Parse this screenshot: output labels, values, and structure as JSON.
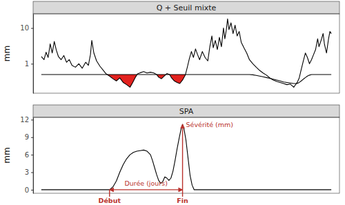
{
  "chart_data": [
    {
      "type": "line",
      "title": "Q + Seuil mixte",
      "y_label": "mm",
      "log": "y",
      "tick_labels": "y",
      "xlim": [
        -12,
        437
      ],
      "ylim": [
        0.15,
        25
      ],
      "yticks": [
        1,
        10
      ],
      "x": [
        0,
        4,
        7,
        10,
        13,
        16,
        19,
        22,
        25,
        29,
        33,
        37,
        41,
        45,
        50,
        55,
        60,
        65,
        69,
        72,
        74,
        77,
        81,
        86,
        91,
        95,
        100,
        105,
        110,
        115,
        120,
        125,
        130,
        134,
        138,
        141,
        145,
        150,
        155,
        160,
        165,
        169,
        172,
        176,
        180,
        184,
        188,
        191,
        195,
        199,
        203,
        207,
        211,
        214,
        217,
        220,
        223,
        226,
        229,
        232,
        236,
        240,
        244,
        247,
        250,
        252,
        255,
        258,
        261,
        264,
        267,
        269,
        271,
        273,
        275,
        278,
        281,
        284,
        287,
        290,
        293,
        297,
        301,
        305,
        310,
        315,
        320,
        325,
        330,
        335,
        340,
        345,
        350,
        355,
        360,
        365,
        370,
        372,
        375,
        378,
        381,
        384,
        387,
        390,
        393,
        396,
        399,
        402,
        405,
        407,
        410,
        413,
        415,
        418,
        421,
        423,
        425
      ],
      "series": [
        {
          "color": "#000000",
          "values": [
            1.6,
            1.3,
            2.1,
            1.5,
            3.6,
            2.0,
            4.2,
            2.4,
            1.6,
            1.3,
            1.7,
            1.1,
            1.3,
            0.9,
            0.8,
            1.0,
            0.75,
            1.1,
            0.9,
            1.8,
            4.5,
            2.0,
            1.2,
            0.85,
            0.65,
            0.52,
            0.45,
            0.38,
            0.33,
            0.4,
            0.3,
            0.26,
            0.22,
            0.3,
            0.42,
            0.52,
            0.56,
            0.6,
            0.55,
            0.58,
            0.55,
            0.5,
            0.42,
            0.38,
            0.45,
            0.53,
            0.5,
            0.4,
            0.33,
            0.3,
            0.28,
            0.35,
            0.48,
            0.8,
            1.4,
            2.2,
            1.5,
            2.6,
            1.8,
            1.3,
            2.2,
            1.5,
            1.2,
            3.0,
            6.0,
            2.8,
            4.5,
            2.5,
            5.5,
            3.0,
            10.0,
            5.0,
            8.5,
            18.0,
            9.0,
            14.0,
            7.0,
            12.0,
            6.0,
            8.0,
            4.0,
            2.8,
            2.0,
            1.3,
            1.0,
            0.8,
            0.65,
            0.55,
            0.48,
            0.4,
            0.35,
            0.32,
            0.3,
            0.28,
            0.26,
            0.27,
            0.22,
            0.25,
            0.3,
            0.4,
            0.7,
            1.2,
            2.0,
            1.5,
            1.0,
            1.3,
            1.8,
            2.5,
            5.0,
            3.0,
            4.5,
            7.0,
            3.5,
            2.0,
            5.0,
            8.0,
            7.0
          ]
        },
        {
          "color": "#000000",
          "values": [
            0.5,
            0.5,
            0.5,
            0.5,
            0.5,
            0.5,
            0.5,
            0.5,
            0.5,
            0.5,
            0.5,
            0.5,
            0.5,
            0.5,
            0.5,
            0.5,
            0.5,
            0.5,
            0.5,
            0.5,
            0.5,
            0.5,
            0.5,
            0.5,
            0.5,
            0.5,
            0.5,
            0.5,
            0.5,
            0.5,
            0.5,
            0.5,
            0.5,
            0.5,
            0.5,
            0.5,
            0.5,
            0.5,
            0.5,
            0.5,
            0.5,
            0.5,
            0.5,
            0.5,
            0.5,
            0.5,
            0.5,
            0.5,
            0.5,
            0.5,
            0.5,
            0.5,
            0.5,
            0.5,
            0.5,
            0.5,
            0.5,
            0.5,
            0.5,
            0.5,
            0.5,
            0.5,
            0.5,
            0.5,
            0.5,
            0.5,
            0.5,
            0.5,
            0.5,
            0.5,
            0.5,
            0.5,
            0.5,
            0.5,
            0.5,
            0.5,
            0.5,
            0.5,
            0.5,
            0.5,
            0.5,
            0.5,
            0.5,
            0.5,
            0.49,
            0.47,
            0.45,
            0.43,
            0.41,
            0.39,
            0.37,
            0.35,
            0.33,
            0.31,
            0.3,
            0.29,
            0.28,
            0.28,
            0.28,
            0.3,
            0.33,
            0.37,
            0.41,
            0.45,
            0.48,
            0.5,
            0.5,
            0.5,
            0.5,
            0.5,
            0.5,
            0.5,
            0.5,
            0.5,
            0.5,
            0.5,
            0.5
          ]
        }
      ],
      "deficit": {
        "from": 93,
        "to": 213,
        "color": "#e3221f"
      }
    },
    {
      "type": "line",
      "title": "SPA",
      "y_label": "mm",
      "tick_labels": "y",
      "xlim": [
        -12,
        437
      ],
      "ylim": [
        -0.6,
        12.4
      ],
      "yticks": [
        0,
        3,
        6,
        9,
        12
      ],
      "x": [
        0,
        100,
        105,
        110,
        115,
        120,
        125,
        130,
        135,
        140,
        145,
        150,
        155,
        160,
        163,
        166,
        169,
        172,
        175,
        178,
        181,
        184,
        187,
        190,
        193,
        196,
        199,
        202,
        205,
        207,
        209,
        212,
        215,
        218,
        221,
        224,
        425
      ],
      "series": [
        {
          "color": "#000000",
          "values": [
            0,
            0,
            0.5,
            1.5,
            3,
            4.3,
            5.3,
            6,
            6.4,
            6.6,
            6.7,
            6.8,
            6.6,
            6,
            5,
            3.8,
            2.6,
            1.6,
            1.1,
            1.4,
            2.2,
            2,
            1.6,
            2,
            3.2,
            5,
            7,
            8.8,
            10.5,
            11.2,
            10.5,
            8.5,
            5.5,
            2.5,
            0.8,
            0,
            0
          ]
        }
      ],
      "annotations": [
        {
          "text": "Début",
          "x": 100,
          "y": 0,
          "color": "#b9322d"
        },
        {
          "text": "Fin",
          "x": 207,
          "y": 0,
          "color": "#b9322d"
        },
        {
          "text": "Durée (jours)",
          "x": [
            100,
            207
          ],
          "y": 0,
          "color": "#b9322d"
        },
        {
          "text": "Sévérité (mm)",
          "x": 207,
          "y": [
            0,
            11.2
          ],
          "color": "#b9322d"
        }
      ]
    }
  ]
}
